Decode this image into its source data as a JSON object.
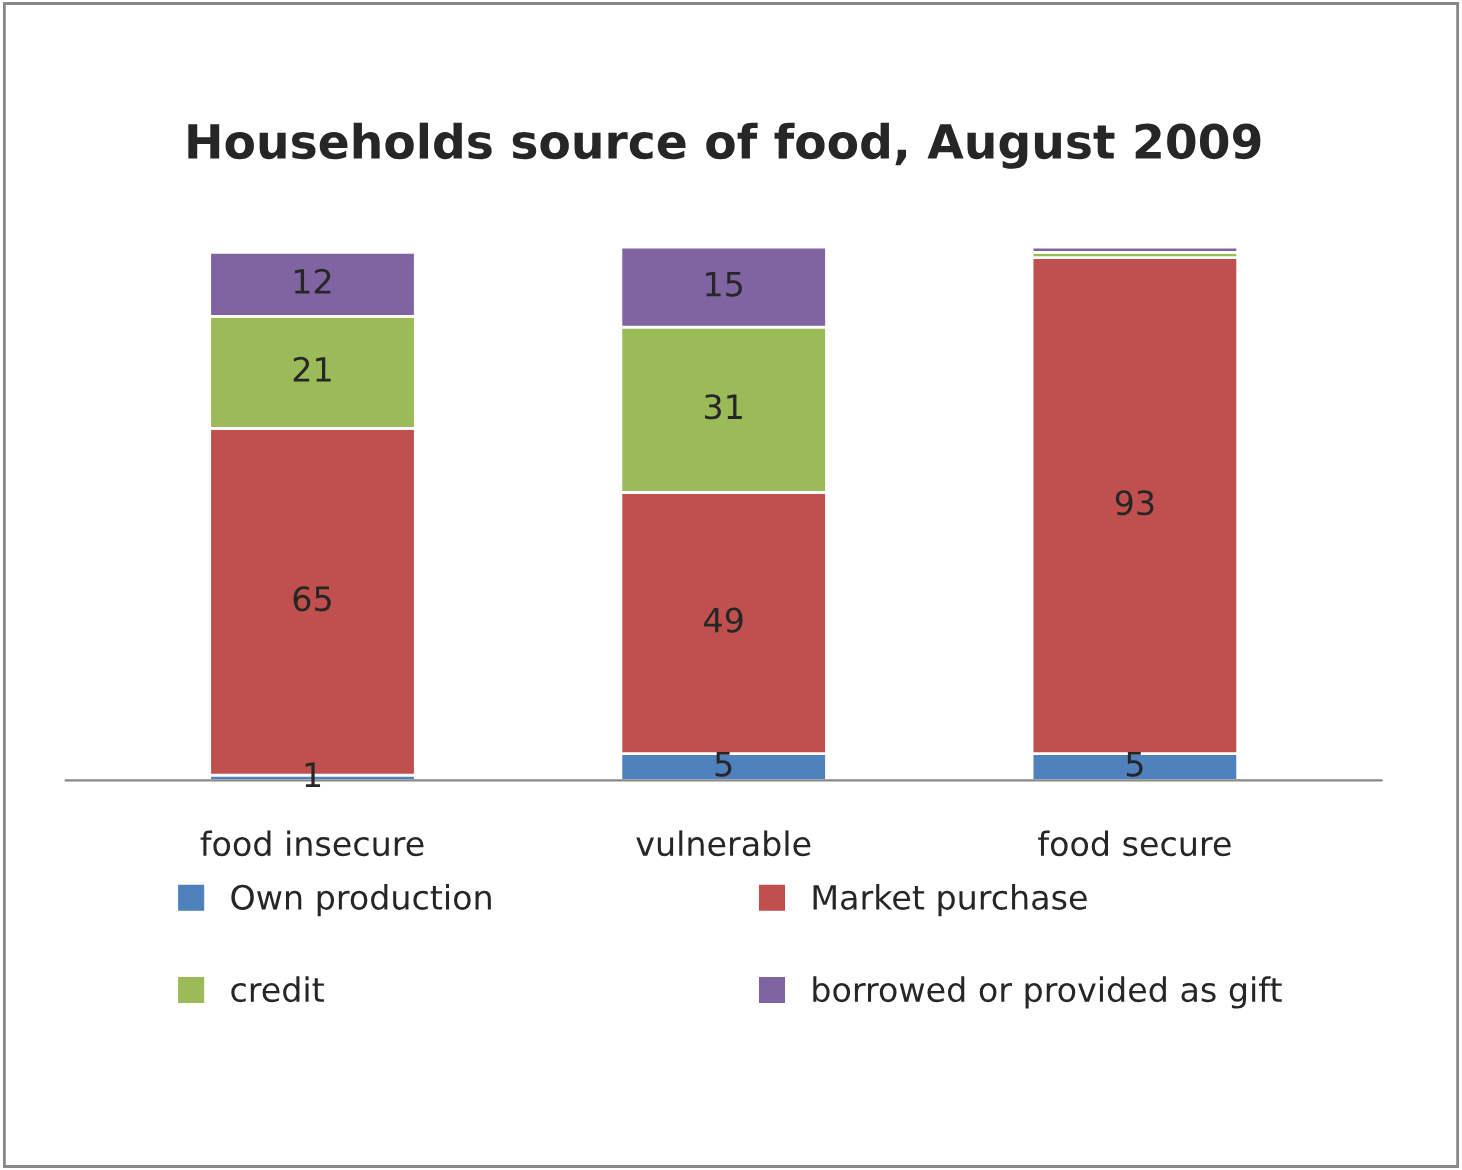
{
  "chart_data": {
    "type": "bar",
    "title": "Households source of food, August 2009",
    "stacked": true,
    "legend": "bottom",
    "categories": [
      "food insecure",
      "vulnerable",
      "food secure"
    ],
    "series": [
      {
        "name": "Own production",
        "color": "#4f81bd",
        "values": [
          1,
          5,
          5
        ],
        "value_labels": [
          "1",
          "5",
          "5"
        ]
      },
      {
        "name": "Market purchase",
        "color": "#c0504d",
        "values": [
          65,
          49,
          93
        ],
        "value_labels": [
          "65",
          "49",
          "93"
        ]
      },
      {
        "name": "credit",
        "color": "#9bbb59",
        "values": [
          21,
          31,
          1
        ],
        "value_labels": [
          "21",
          "31",
          null
        ]
      },
      {
        "name": "borrowed or provided as gift",
        "color": "#8064a2",
        "values": [
          12,
          15,
          1
        ],
        "value_labels": [
          "12",
          "15",
          null
        ]
      }
    ]
  }
}
